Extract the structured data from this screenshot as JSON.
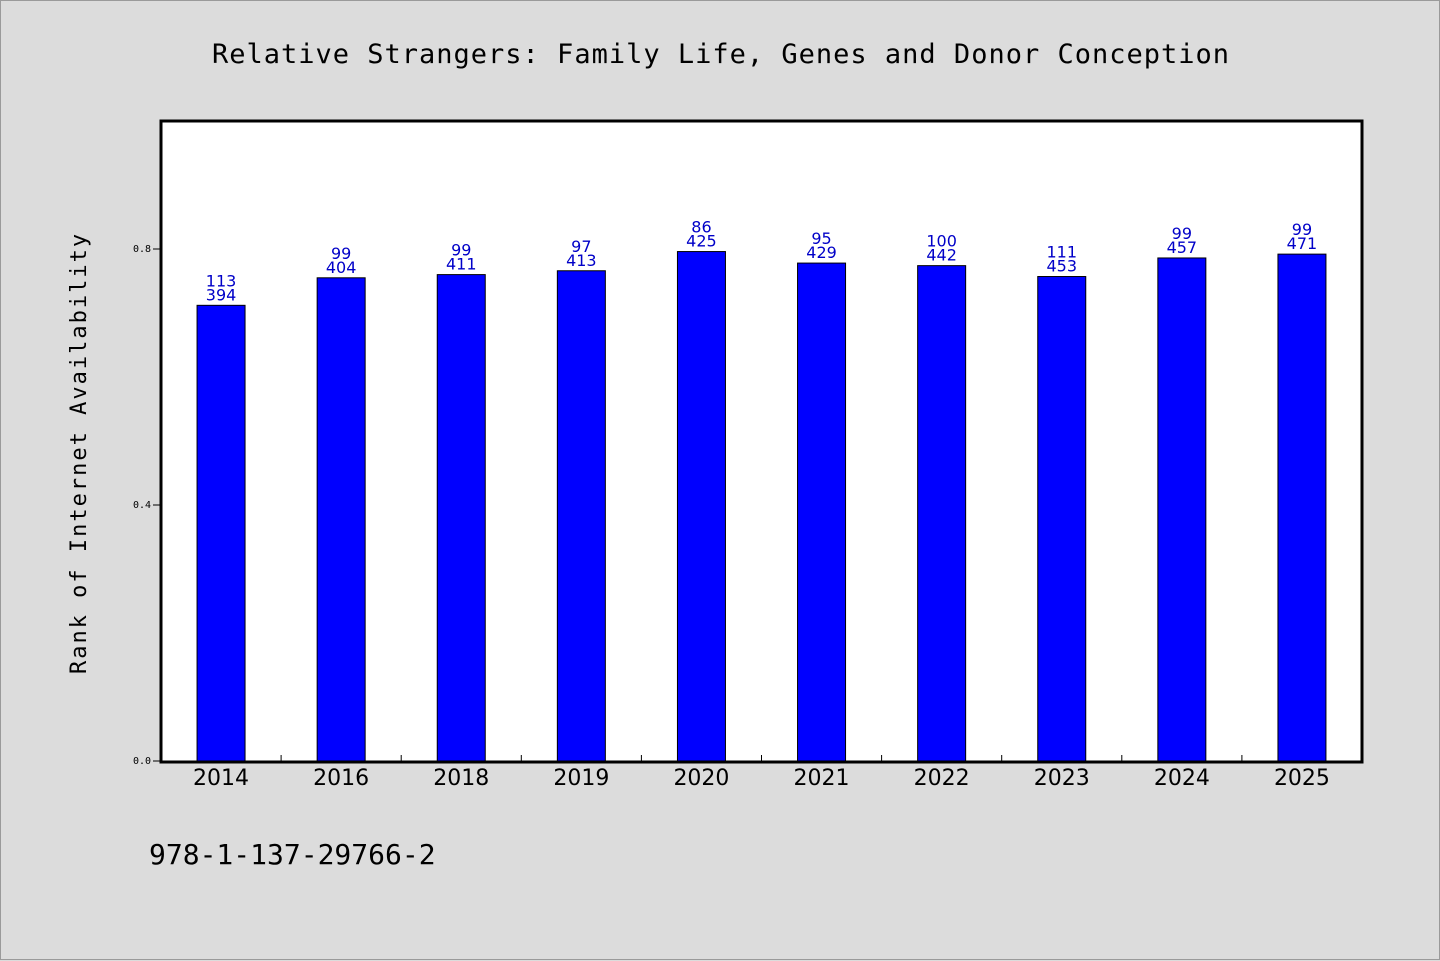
{
  "chart_data": {
    "type": "bar",
    "title": "Relative Strangers: Family Life, Genes and Donor Conception",
    "xlabel": "",
    "ylabel": "Rank of Internet Availability",
    "ylim": [
      0,
      1.0
    ],
    "yticks": [
      "0.0",
      "0.4",
      "0.8"
    ],
    "grid": false,
    "legend": "none",
    "categories": [
      "2014",
      "2016",
      "2018",
      "2019",
      "2020",
      "2021",
      "2022",
      "2023",
      "2024",
      "2025"
    ],
    "values": [
      0.712,
      0.755,
      0.76,
      0.766,
      0.796,
      0.778,
      0.774,
      0.757,
      0.786,
      0.792
    ],
    "label_top": [
      "113",
      "99",
      "99",
      "97",
      "86",
      "95",
      "100",
      "111",
      "99",
      "99"
    ],
    "label_bottom": [
      "394",
      "404",
      "411",
      "413",
      "425",
      "429",
      "442",
      "453",
      "457",
      "471"
    ],
    "bar_color": "#0000ff",
    "label_color": "#0000c8",
    "background_color": "#dcdcdc",
    "plot_background": "#ffffff"
  },
  "footer": {
    "isbn": "978-1-137-29766-2"
  }
}
